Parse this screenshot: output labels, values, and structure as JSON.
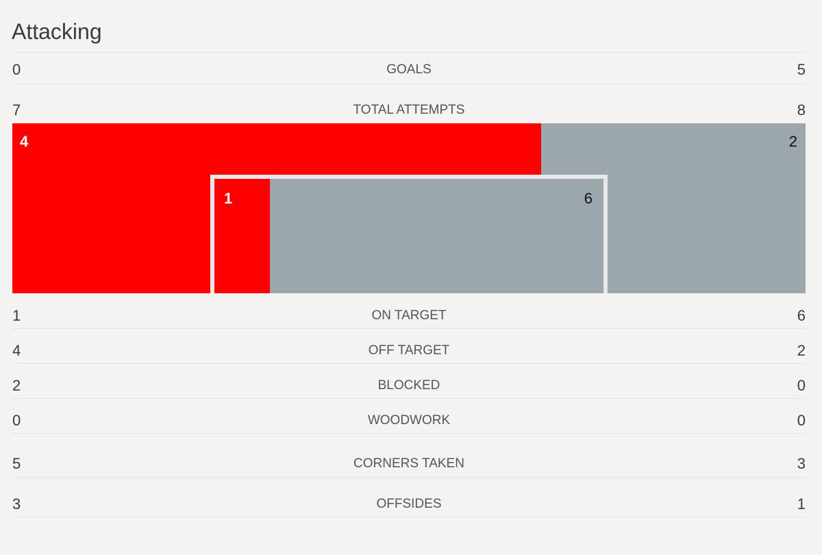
{
  "section": {
    "title": "Attacking"
  },
  "goals": {
    "label": "GOALS",
    "home": "0",
    "away": "5"
  },
  "total_attempts": {
    "label": "TOTAL ATTEMPTS",
    "home": "7",
    "away": "8"
  },
  "shot_map": {
    "off_target": {
      "home": 4,
      "away": 2
    },
    "on_target": {
      "home": 1,
      "away": 6
    },
    "colors": {
      "home": "#ff0000",
      "away": "#9ba7ac",
      "frame": "#e8e8e8"
    }
  },
  "stats": [
    {
      "label": "ON TARGET",
      "home": "1",
      "away": "6"
    },
    {
      "label": "OFF TARGET",
      "home": "4",
      "away": "2"
    },
    {
      "label": "BLOCKED",
      "home": "2",
      "away": "0"
    },
    {
      "label": "WOODWORK",
      "home": "0",
      "away": "0"
    },
    {
      "label": "CORNERS TAKEN",
      "home": "5",
      "away": "3"
    },
    {
      "label": "OFFSIDES",
      "home": "3",
      "away": "1"
    }
  ]
}
